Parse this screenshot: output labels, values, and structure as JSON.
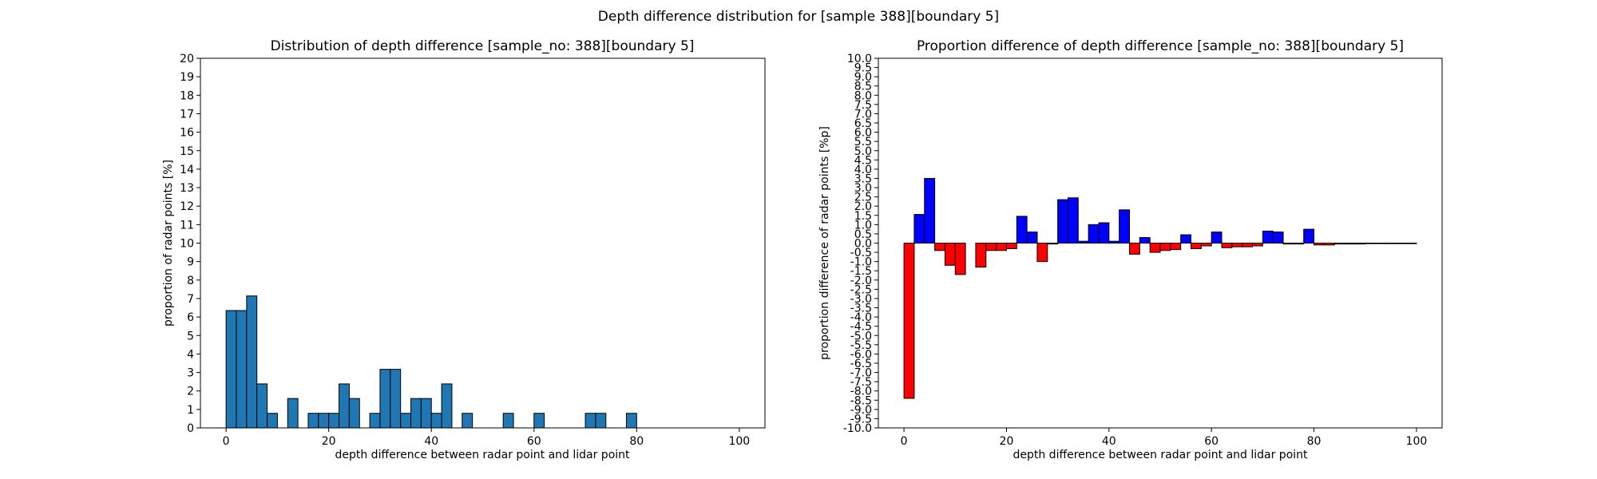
{
  "suptitle": "Depth difference distribution for [sample 388][boundary 5]",
  "colors": {
    "hist_fill": "#1f77b4",
    "positive": "#0000ff",
    "negative": "#ff0000",
    "edge": "#000000"
  },
  "chart_data": [
    {
      "type": "bar",
      "title": "Distribution of depth difference [sample_no: 388][boundary 5]",
      "xlabel": "depth difference between radar point and lidar point",
      "ylabel": "proportion of radar points [%]",
      "xlim": [
        -5,
        105
      ],
      "ylim": [
        0,
        20
      ],
      "xticks": [
        0,
        20,
        40,
        60,
        80,
        100
      ],
      "yticks": [
        0,
        1,
        2,
        3,
        4,
        5,
        6,
        7,
        8,
        9,
        10,
        11,
        12,
        13,
        14,
        15,
        16,
        17,
        18,
        19,
        20
      ],
      "grid": false,
      "bin_width": 2,
      "bins_start": [
        0,
        2,
        4,
        6,
        8,
        10,
        12,
        14,
        16,
        18,
        20,
        22,
        24,
        26,
        28,
        30,
        32,
        34,
        36,
        38,
        40,
        42,
        44,
        46,
        48,
        50,
        52,
        54,
        56,
        58,
        60,
        62,
        64,
        66,
        68,
        70,
        72,
        74,
        76,
        78,
        80,
        82,
        84,
        86,
        88,
        90,
        92,
        94,
        96,
        98
      ],
      "values": [
        6.35,
        6.35,
        7.14,
        2.38,
        0.79,
        0,
        1.59,
        0,
        0.79,
        0.79,
        0.79,
        2.38,
        1.59,
        0,
        0.79,
        3.17,
        3.17,
        0.79,
        1.59,
        1.59,
        0.79,
        2.38,
        0,
        0.79,
        0,
        0,
        0,
        0.79,
        0,
        0,
        0.79,
        0,
        0,
        0,
        0,
        0.79,
        0.79,
        0,
        0,
        0.79,
        0,
        0,
        0,
        0,
        0,
        0,
        0,
        0,
        0,
        0
      ]
    },
    {
      "type": "bar",
      "title": "Proportion difference of depth difference [sample_no: 388][boundary 5]",
      "xlabel": "depth difference between radar point and lidar point",
      "ylabel": "proportion difference of radar points [%p]",
      "xlim": [
        -5,
        105
      ],
      "ylim": [
        -10,
        10
      ],
      "xticks": [
        0,
        20,
        40,
        60,
        80,
        100
      ],
      "yticks": [
        -10.0,
        -9.5,
        -9.0,
        -8.5,
        -8.0,
        -7.5,
        -7.0,
        -6.5,
        -6.0,
        -5.5,
        -5.0,
        -4.5,
        -4.0,
        -3.5,
        -3.0,
        -2.5,
        -2.0,
        -1.5,
        -1.0,
        -0.5,
        0.0,
        0.5,
        1.0,
        1.5,
        2.0,
        2.5,
        3.0,
        3.5,
        4.0,
        4.5,
        5.0,
        5.5,
        6.0,
        6.5,
        7.0,
        7.5,
        8.0,
        8.5,
        9.0,
        9.5,
        10.0
      ],
      "grid": false,
      "bin_width": 2,
      "bins_start": [
        0,
        2,
        4,
        6,
        8,
        10,
        12,
        14,
        16,
        18,
        20,
        22,
        24,
        26,
        28,
        30,
        32,
        34,
        36,
        38,
        40,
        42,
        44,
        46,
        48,
        50,
        52,
        54,
        56,
        58,
        60,
        62,
        64,
        66,
        68,
        70,
        72,
        74,
        76,
        78,
        80,
        82,
        84,
        86,
        88,
        90,
        92,
        94,
        96,
        98
      ],
      "values": [
        -8.4,
        1.55,
        3.5,
        -0.4,
        -1.2,
        -1.7,
        0,
        -1.3,
        -0.4,
        -0.4,
        -0.3,
        1.45,
        0.6,
        -1.0,
        -0.05,
        2.35,
        2.45,
        0.1,
        1.0,
        1.1,
        0.1,
        1.8,
        -0.6,
        0.3,
        -0.5,
        -0.4,
        -0.35,
        0.45,
        -0.3,
        -0.15,
        0.6,
        -0.25,
        -0.2,
        -0.2,
        -0.15,
        0.65,
        0.6,
        -0.05,
        -0.05,
        0.75,
        -0.1,
        -0.1,
        -0.05,
        -0.05,
        -0.05,
        -0.03,
        -0.03,
        -0.03,
        -0.03,
        -0.03
      ]
    }
  ]
}
